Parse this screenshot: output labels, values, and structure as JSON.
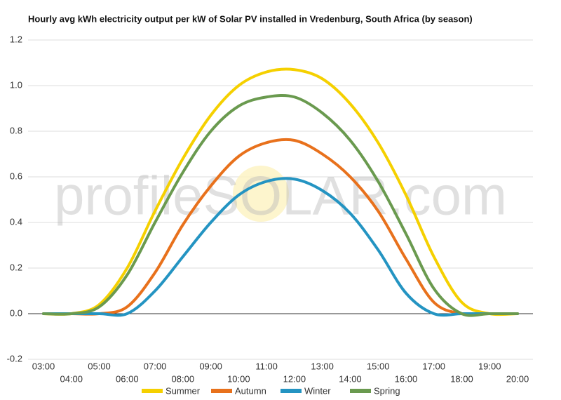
{
  "chart_data": {
    "type": "line",
    "title": "Hourly avg kWh electricity output per kW of Solar PV installed in Vredenburg, South Africa (by season)",
    "watermark": "profileSOLAR.com",
    "categories": [
      "03:00",
      "04:00",
      "05:00",
      "06:00",
      "07:00",
      "08:00",
      "09:00",
      "10:00",
      "11:00",
      "12:00",
      "13:00",
      "14:00",
      "15:00",
      "16:00",
      "17:00",
      "18:00",
      "19:00",
      "20:00"
    ],
    "series": [
      {
        "name": "Summer",
        "color": "#f5d000",
        "values": [
          0,
          0,
          0.04,
          0.2,
          0.45,
          0.68,
          0.87,
          1.0,
          1.06,
          1.07,
          1.03,
          0.92,
          0.75,
          0.52,
          0.25,
          0.05,
          0,
          0
        ]
      },
      {
        "name": "Autumn",
        "color": "#e8711c",
        "values": [
          0,
          0,
          0,
          0.03,
          0.18,
          0.39,
          0.56,
          0.69,
          0.75,
          0.76,
          0.7,
          0.6,
          0.45,
          0.24,
          0.05,
          0,
          0,
          0
        ]
      },
      {
        "name": "Winter",
        "color": "#2494c2",
        "values": [
          0,
          0,
          0,
          0,
          0.1,
          0.25,
          0.4,
          0.52,
          0.58,
          0.59,
          0.54,
          0.44,
          0.28,
          0.09,
          0,
          0,
          0,
          0
        ]
      },
      {
        "name": "Spring",
        "color": "#6a9a4f",
        "values": [
          0,
          0,
          0.03,
          0.17,
          0.4,
          0.62,
          0.8,
          0.91,
          0.95,
          0.95,
          0.88,
          0.76,
          0.58,
          0.35,
          0.11,
          0,
          0,
          0
        ]
      }
    ],
    "ylim": [
      -0.2,
      1.2
    ],
    "yticks": [
      -0.2,
      {
        "value": 0,
        "label": "0.0"
      },
      0.2,
      0.4,
      0.6,
      0.8,
      {
        "value": 1,
        "label": "1.0"
      },
      1.2
    ],
    "grid": true,
    "legend": "bottom"
  }
}
